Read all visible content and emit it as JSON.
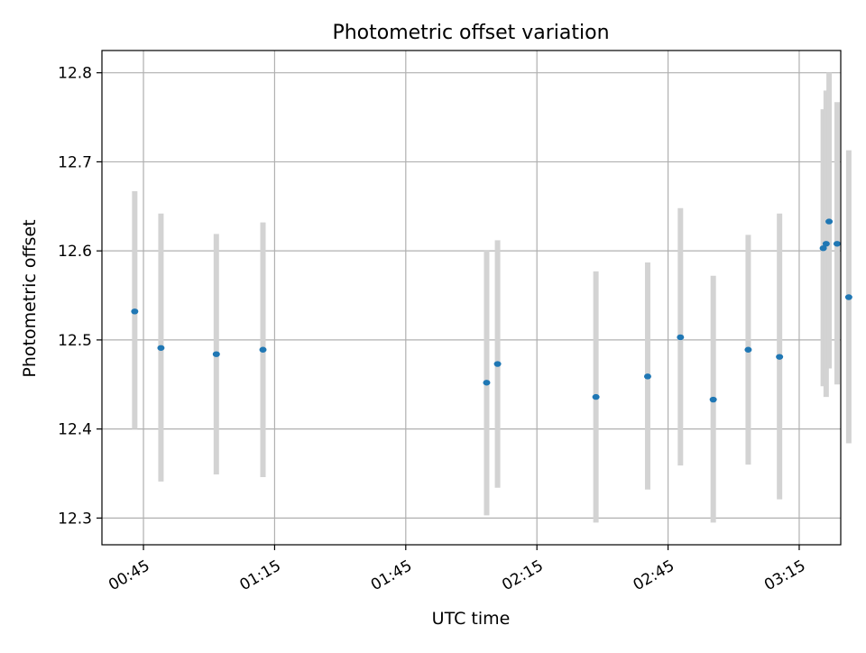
{
  "chart_data": {
    "type": "scatter",
    "title": "Photometric offset variation",
    "xlabel": "UTC time",
    "ylabel": "Photometric offset",
    "x_ticks": [
      "00:45",
      "01:15",
      "01:45",
      "02:15",
      "02:45",
      "03:15"
    ],
    "y_ticks": [
      "12.3",
      "12.4",
      "12.5",
      "12.6",
      "12.7",
      "12.8"
    ],
    "xlim": [
      "00:35:30",
      "03:24:30"
    ],
    "ylim": [
      12.27,
      12.825
    ],
    "grid": true,
    "colors": {
      "point": "#1f77b4",
      "errorbar": "#d3d3d3",
      "grid": "#b0b0b0"
    },
    "points": [
      {
        "x": "00:43:00",
        "y": 12.532,
        "lo": 12.4,
        "hi": 12.667
      },
      {
        "x": "00:49:00",
        "y": 12.491,
        "lo": 12.341,
        "hi": 12.642
      },
      {
        "x": "01:01:40",
        "y": 12.484,
        "lo": 12.349,
        "hi": 12.619
      },
      {
        "x": "01:12:20",
        "y": 12.489,
        "lo": 12.346,
        "hi": 12.632
      },
      {
        "x": "02:03:30",
        "y": 12.452,
        "lo": 12.303,
        "hi": 12.601
      },
      {
        "x": "02:06:00",
        "y": 12.473,
        "lo": 12.334,
        "hi": 12.612
      },
      {
        "x": "02:28:30",
        "y": 12.436,
        "lo": 12.295,
        "hi": 12.577
      },
      {
        "x": "02:40:20",
        "y": 12.459,
        "lo": 12.332,
        "hi": 12.587
      },
      {
        "x": "02:47:50",
        "y": 12.503,
        "lo": 12.359,
        "hi": 12.648
      },
      {
        "x": "02:55:20",
        "y": 12.433,
        "lo": 12.295,
        "hi": 12.572
      },
      {
        "x": "03:03:20",
        "y": 12.489,
        "lo": 12.36,
        "hi": 12.618
      },
      {
        "x": "03:10:30",
        "y": 12.481,
        "lo": 12.321,
        "hi": 12.642
      },
      {
        "x": "03:20:30",
        "y": 12.603,
        "lo": 12.448,
        "hi": 12.759
      },
      {
        "x": "03:21:10",
        "y": 12.608,
        "lo": 12.436,
        "hi": 12.78
      },
      {
        "x": "03:21:50",
        "y": 12.633,
        "lo": 12.468,
        "hi": 12.8
      },
      {
        "x": "03:23:40",
        "y": 12.608,
        "lo": 12.45,
        "hi": 12.767
      },
      {
        "x": "03:26:20",
        "y": 12.548,
        "lo": 12.384,
        "hi": 12.713
      }
    ]
  }
}
